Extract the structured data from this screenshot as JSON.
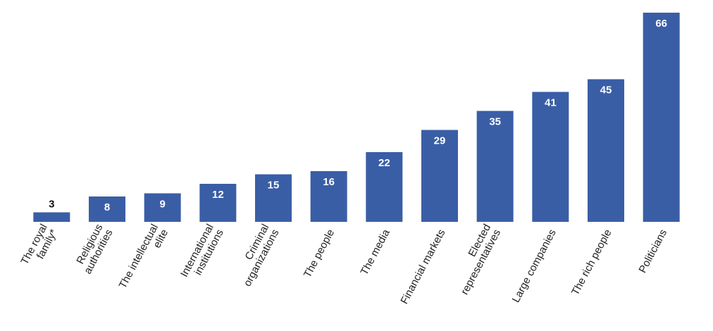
{
  "chart_data": {
    "type": "bar",
    "categories": [
      "The royal\nfamily*",
      "Religious\nauthorities",
      "The intellectual\nelite",
      "International\ninstitutions",
      "Criminal\norganizations",
      "The people",
      "The media",
      "Financial markets",
      "Elected\nrepresentatives",
      "Large companies",
      "The rich people",
      "Politicians"
    ],
    "values": [
      3,
      8,
      9,
      12,
      15,
      16,
      22,
      29,
      35,
      41,
      45,
      66
    ],
    "color": "#3a5ea6"
  }
}
